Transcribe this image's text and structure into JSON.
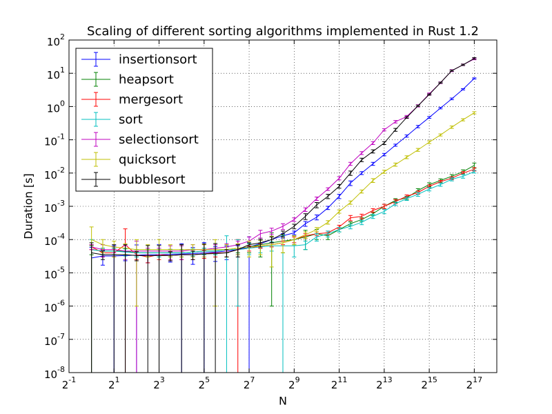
{
  "chart_data": {
    "type": "errorbar-line",
    "title": "Scaling of different sorting algorithms implemented in Rust 1.2",
    "xlabel": "N",
    "ylabel": "Duration [s]",
    "xscale": "log2",
    "yscale": "log10",
    "grid": true,
    "legend": "upper left",
    "xlim": [
      0.5,
      262144
    ],
    "ylim": [
      1e-08,
      100
    ],
    "xticks": [
      {
        "value": 0.5,
        "label": "2^-1"
      },
      {
        "value": 2,
        "label": "2^1"
      },
      {
        "value": 8,
        "label": "2^3"
      },
      {
        "value": 32,
        "label": "2^5"
      },
      {
        "value": 128,
        "label": "2^7"
      },
      {
        "value": 512,
        "label": "2^9"
      },
      {
        "value": 2048,
        "label": "2^11"
      },
      {
        "value": 8192,
        "label": "2^13"
      },
      {
        "value": 32768,
        "label": "2^15"
      },
      {
        "value": 131072,
        "label": "2^17"
      }
    ],
    "yticks": [
      {
        "value": 1e-08,
        "label": "10^-8"
      },
      {
        "value": 1e-07,
        "label": "10^-7"
      },
      {
        "value": 1e-06,
        "label": "10^-6"
      },
      {
        "value": 1e-05,
        "label": "10^-5"
      },
      {
        "value": 0.0001,
        "label": "10^-4"
      },
      {
        "value": 0.001,
        "label": "10^-3"
      },
      {
        "value": 0.01,
        "label": "10^-2"
      },
      {
        "value": 0.1,
        "label": "10^-1"
      },
      {
        "value": 1,
        "label": "10^0"
      },
      {
        "value": 10,
        "label": "10^1"
      },
      {
        "value": 100,
        "label": "10^2"
      }
    ],
    "x": [
      1,
      1.414,
      2,
      2.828,
      4,
      5.657,
      8,
      11.31,
      16,
      22.63,
      32,
      45.25,
      64,
      90.51,
      128,
      181,
      256,
      362,
      512,
      724.1,
      1024,
      1448,
      2048,
      2896,
      4096,
      5793,
      8192,
      11585,
      16384,
      23170,
      32768,
      46341,
      65536,
      92682,
      131072
    ],
    "series": [
      {
        "name": "insertionsort",
        "color": "#0000ff",
        "values": [
          2.8e-05,
          3.2e-05,
          3.2e-05,
          3.3e-05,
          3.4e-05,
          3.5e-05,
          3.5e-05,
          3.6e-05,
          3.7e-05,
          3.8e-05,
          4e-05,
          4.2e-05,
          4.5e-05,
          5e-05,
          6e-05,
          7.5e-05,
          0.0001,
          0.00013,
          0.00016,
          0.0003,
          0.00047,
          0.0009,
          0.002,
          0.005,
          0.01,
          0.019,
          0.036,
          0.069,
          0.13,
          0.25,
          0.47,
          0.9,
          1.7,
          3.3,
          7
        ],
        "errors": [
          3e-05,
          1.5e-05,
          3.3e-05,
          1e-05,
          3.5e-05,
          1.5e-05,
          3.6e-05,
          1.5e-05,
          3.8e-05,
          2e-05,
          4.1e-05,
          2e-05,
          2e-05,
          1.5e-05,
          6e-05,
          2e-05,
          2e-05,
          2e-05,
          2e-05,
          5e-05,
          8e-05,
          0.0001,
          0.0003,
          0.0008,
          0.001,
          0.002,
          0.003,
          0.005,
          0.01,
          0.02,
          0.03,
          0.05,
          0.1,
          0.15,
          0.3
        ]
      },
      {
        "name": "heapsort",
        "color": "#008000",
        "values": [
          5e-05,
          4.5e-05,
          4.5e-05,
          4.5e-05,
          4e-05,
          4e-05,
          4e-05,
          4e-05,
          4e-05,
          4.2e-05,
          4.5e-05,
          4.5e-05,
          5e-05,
          5.5e-05,
          6e-05,
          7e-05,
          8e-05,
          9e-05,
          0.0001,
          0.00012,
          0.00015,
          0.00013,
          0.0002,
          0.0003,
          0.0004,
          0.0006,
          0.001,
          0.0015,
          0.0018,
          0.003,
          0.0045,
          0.006,
          0.008,
          0.011,
          0.017
        ],
        "errors": [
          1.5e-05,
          1e-05,
          1e-05,
          1e-05,
          1e-05,
          1e-05,
          1e-05,
          1e-05,
          1e-05,
          1e-05,
          1e-05,
          1e-05,
          1e-05,
          1.5e-05,
          2e-05,
          4e-05,
          7.9e-05,
          5e-05,
          3e-05,
          7e-05,
          5e-05,
          3e-05,
          3e-05,
          4e-05,
          5e-05,
          7e-05,
          0.00015,
          0.0002,
          0.0002,
          0.0004,
          0.0006,
          0.0007,
          0.001,
          0.0015,
          0.003
        ]
      },
      {
        "name": "mergesort",
        "color": "#ff0000",
        "values": [
          6e-05,
          4e-05,
          4e-05,
          7e-05,
          3.5e-05,
          3e-05,
          3.5e-05,
          3.3e-05,
          3.5e-05,
          3.5e-05,
          3.7e-05,
          4e-05,
          4e-05,
          5e-05,
          5.5e-05,
          6.5e-05,
          7e-05,
          8e-05,
          0.0001,
          0.00013,
          0.00015,
          0.00016,
          0.00024,
          0.00045,
          0.0005,
          0.00075,
          0.001,
          0.0014,
          0.002,
          0.0026,
          0.004,
          0.0055,
          0.007,
          0.01,
          0.013
        ],
        "errors": [
          1e-05,
          1e-05,
          1e-05,
          0.00014,
          1e-05,
          1e-05,
          1e-05,
          1e-05,
          1e-05,
          1e-05,
          1e-05,
          1e-05,
          1e-05,
          5e-05,
          1e-05,
          1e-05,
          1e-05,
          1e-05,
          2e-05,
          2e-05,
          2e-05,
          2e-05,
          3e-05,
          8e-05,
          8e-05,
          0.0001,
          0.00015,
          0.0002,
          0.0002,
          0.0003,
          0.0004,
          0.0005,
          0.0007,
          0.001,
          0.0015
        ]
      },
      {
        "name": "sort",
        "color": "#00bfbf",
        "values": [
          5e-05,
          4.5e-05,
          4.5e-05,
          4.2e-05,
          4e-05,
          4e-05,
          4e-05,
          4e-05,
          4e-05,
          4.2e-05,
          4.5e-05,
          4.5e-05,
          5e-05,
          5e-05,
          5.5e-05,
          6e-05,
          6.5e-05,
          6.5e-05,
          6.5e-05,
          7e-05,
          0.00012,
          0.00015,
          0.0002,
          0.00025,
          0.00033,
          0.0005,
          0.0007,
          0.0012,
          0.0017,
          0.0023,
          0.0033,
          0.0045,
          0.0065,
          0.008,
          0.011
        ],
        "errors": [
          5e-05,
          1e-05,
          1e-05,
          1e-05,
          1e-05,
          1e-05,
          1e-05,
          1e-05,
          1e-05,
          1e-05,
          1e-05,
          1e-05,
          8e-05,
          4.9e-05,
          2e-05,
          2e-05,
          2e-05,
          6.5e-05,
          3.5e-05,
          2e-05,
          3e-05,
          3e-05,
          3e-05,
          4e-05,
          5e-05,
          7e-05,
          0.0001,
          0.00015,
          0.0002,
          0.0003,
          0.0004,
          0.0005,
          0.0007,
          0.001,
          0.001
        ]
      },
      {
        "name": "selectionsort",
        "color": "#bf00bf",
        "values": [
          6e-05,
          5e-05,
          5e-05,
          4.5e-05,
          4.5e-05,
          4.5e-05,
          4.5e-05,
          4.5e-05,
          4.5e-05,
          5e-05,
          5e-05,
          5.5e-05,
          6e-05,
          7e-05,
          9e-05,
          0.00015,
          0.00018,
          0.00025,
          0.0004,
          0.0008,
          0.0017,
          0.0033,
          0.007,
          0.019,
          0.04,
          0.08,
          0.2,
          0.35,
          0.5,
          1.05,
          2.4,
          5.2,
          12,
          18,
          27
        ],
        "errors": [
          1e-05,
          2e-05,
          1e-05,
          2e-05,
          4.5e-05,
          1e-05,
          1e-05,
          2e-05,
          2e-05,
          2e-05,
          2e-05,
          1.5e-05,
          1.5e-05,
          2e-05,
          3e-05,
          4e-05,
          4e-05,
          5e-05,
          5e-05,
          0.0001,
          0.0002,
          0.0003,
          0.0008,
          0.002,
          0.004,
          0.008,
          0.015,
          0.03,
          0.04,
          0.08,
          0.15,
          0.3,
          0.8,
          1,
          1.5
        ]
      },
      {
        "name": "quicksort",
        "color": "#bfbf00",
        "values": [
          0.0001,
          7e-05,
          6e-05,
          5.5e-05,
          5e-05,
          5e-05,
          5e-05,
          5e-05,
          5e-05,
          5e-05,
          5e-05,
          5e-05,
          5e-05,
          5.5e-05,
          6e-05,
          6.5e-05,
          7e-05,
          8e-05,
          0.0001,
          0.00014,
          0.0002,
          0.00033,
          0.0007,
          0.0013,
          0.0028,
          0.006,
          0.011,
          0.018,
          0.03,
          0.05,
          0.085,
          0.14,
          0.24,
          0.4,
          0.65
        ],
        "errors": [
          0.00014,
          3e-05,
          3e-05,
          2e-05,
          4.9e-05,
          2e-05,
          5e-05,
          2e-05,
          2e-05,
          2e-05,
          2e-05,
          4.9e-05,
          2e-05,
          2e-05,
          3e-05,
          3e-05,
          5.5e-05,
          4e-05,
          3e-05,
          3e-05,
          3e-05,
          4e-05,
          8e-05,
          0.00015,
          0.0003,
          0.0008,
          0.0012,
          0.002,
          0.003,
          0.005,
          0.008,
          0.01,
          0.02,
          0.03,
          0.05
        ]
      },
      {
        "name": "bubblesort",
        "color": "#000000",
        "values": [
          4e-05,
          3.5e-05,
          3.5e-05,
          3.5e-05,
          3.3e-05,
          3.3e-05,
          3.3e-05,
          3.3e-05,
          3.5e-05,
          3.5e-05,
          3.7e-05,
          3.8e-05,
          4e-05,
          5e-05,
          7e-05,
          8e-05,
          0.0001,
          0.00015,
          0.00025,
          0.0005,
          0.0011,
          0.002,
          0.004,
          0.01,
          0.025,
          0.045,
          0.08,
          0.2,
          0.47,
          1.05,
          2.3,
          5.2,
          12,
          18,
          28
        ],
        "errors": [
          4e-05,
          1e-05,
          3.5e-05,
          3.5e-05,
          1e-05,
          3.3e-05,
          3.3e-05,
          1e-05,
          3.5e-05,
          1e-05,
          3.7e-05,
          3.8e-05,
          1e-05,
          2e-05,
          1e-05,
          2e-05,
          2e-05,
          3e-05,
          4e-05,
          0.0001,
          0.0002,
          0.0003,
          0.0005,
          0.0015,
          0.003,
          0.005,
          0.008,
          0.02,
          0.03,
          0.05,
          0.1,
          0.2,
          0.5,
          0.8,
          1.5
        ]
      }
    ]
  }
}
